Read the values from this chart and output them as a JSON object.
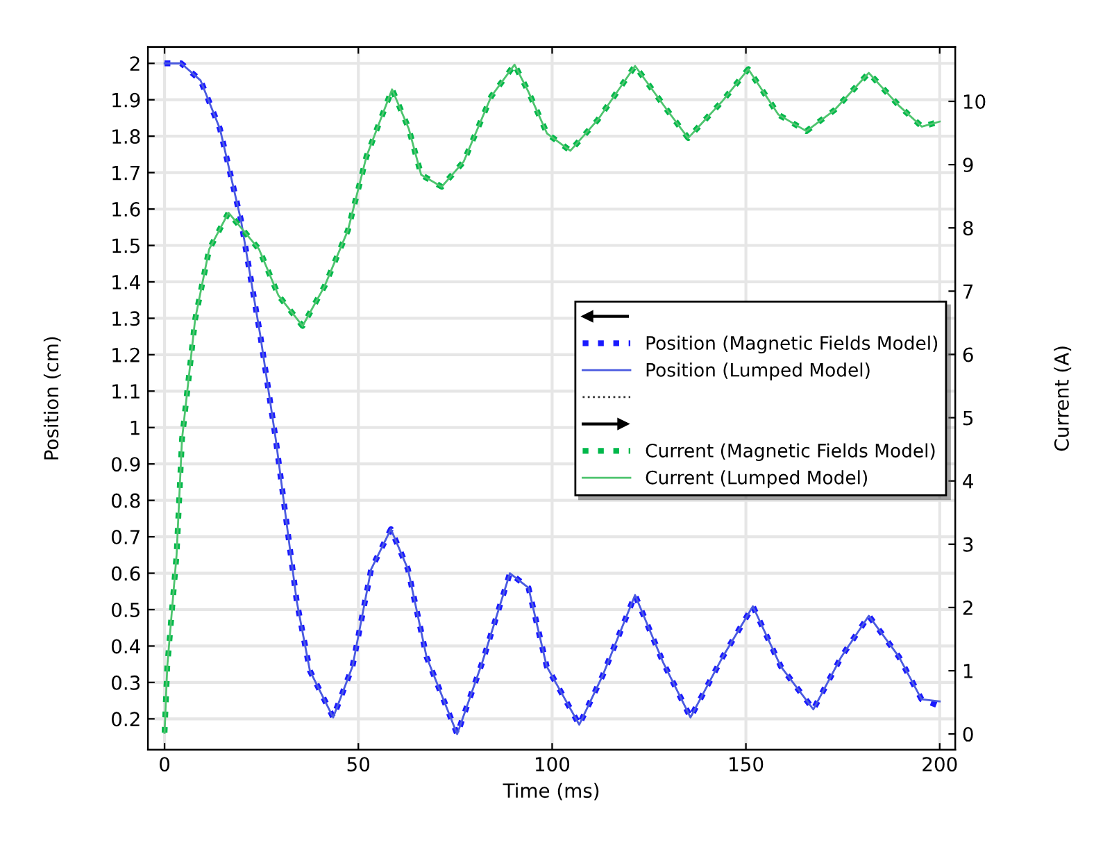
{
  "chart_data": {
    "type": "line",
    "xlabel": "Time (ms)",
    "ylabel": "Position (cm)",
    "y2label": "Current (A)",
    "xlim": [
      -4.3,
      204
    ],
    "xticks": [
      0,
      50,
      100,
      150,
      200
    ],
    "ylim": [
      0.115,
      2.045
    ],
    "yticks": [
      0.2,
      0.3,
      0.4,
      0.5,
      0.6,
      0.7,
      0.8,
      0.9,
      1,
      1.1,
      1.2,
      1.3,
      1.4,
      1.5,
      1.6,
      1.7,
      1.8,
      1.9,
      2
    ],
    "y2lim": [
      -0.25,
      10.86
    ],
    "y2ticks": [
      0,
      1,
      2,
      3,
      4,
      5,
      6,
      7,
      8,
      9,
      10
    ],
    "grid": true,
    "legend": "center right",
    "marker": "none",
    "series": [
      {
        "name": "Position (Magnetic Fields Model)",
        "color": "#1a1aff",
        "line_style": "dotted",
        "x": [
          0,
          4.3,
          9.3,
          14.3,
          19.7,
          24.7,
          28.7,
          34.1,
          37.5,
          43.5,
          48.5,
          53.3,
          58.4,
          62.8,
          67.6,
          75.5,
          82,
          89.1,
          93.9,
          98.6,
          107,
          113,
          121.4,
          128.6,
          135.7,
          144,
          151.8,
          159,
          167.4,
          174.6,
          181.7,
          189.5,
          195.3,
          200
        ],
        "values": [
          2.0,
          2.0,
          1.953,
          1.82,
          1.57,
          1.253,
          0.967,
          0.523,
          0.332,
          0.204,
          0.344,
          0.611,
          0.721,
          0.611,
          0.37,
          0.158,
          0.356,
          0.6,
          0.56,
          0.344,
          0.184,
          0.318,
          0.54,
          0.356,
          0.204,
          0.37,
          0.509,
          0.344,
          0.226,
          0.37,
          0.483,
          0.37,
          0.254,
          0.235
        ]
      },
      {
        "name": "Position (Lumped Model)",
        "color": "#4a5ae0",
        "line_style": "solid",
        "x": [
          0,
          4.3,
          9.3,
          14.3,
          19.7,
          24.7,
          28.7,
          34.1,
          37.5,
          43.5,
          48.5,
          53.3,
          58.4,
          62.8,
          67.6,
          75.5,
          82,
          89.1,
          93.9,
          98.6,
          107,
          113,
          121.4,
          128.6,
          135.7,
          144,
          151.8,
          159,
          167.4,
          174.6,
          181.7,
          189.5,
          195.3,
          200
        ],
        "values": [
          2.0,
          2.0,
          1.953,
          1.82,
          1.57,
          1.253,
          0.967,
          0.523,
          0.332,
          0.204,
          0.344,
          0.611,
          0.721,
          0.611,
          0.37,
          0.158,
          0.356,
          0.6,
          0.56,
          0.344,
          0.184,
          0.318,
          0.54,
          0.356,
          0.204,
          0.37,
          0.509,
          0.344,
          0.226,
          0.37,
          0.483,
          0.37,
          0.254,
          0.248
        ]
      },
      {
        "name": "Current (Magnetic Fields Model)",
        "color": "#00b84a",
        "line_style": "dotted",
        "axis": "y2",
        "x": [
          0,
          0.7,
          3.1,
          4.5,
          7.9,
          11.5,
          16.5,
          24.4,
          29.4,
          35.6,
          41.3,
          47.3,
          52.1,
          58.7,
          63,
          66.2,
          71.5,
          77.2,
          84.3,
          90.3,
          93.9,
          98.7,
          104.7,
          111.8,
          121.4,
          129.7,
          135.1,
          144,
          150.6,
          158.4,
          165.6,
          172.8,
          181.7,
          189.5,
          195.4,
          200
        ],
        "values": [
          0.02,
          1.07,
          2.83,
          4.66,
          6.56,
          7.66,
          8.24,
          7.66,
          6.93,
          6.45,
          7.08,
          7.96,
          9.13,
          10.19,
          9.57,
          8.84,
          8.65,
          9.05,
          10.08,
          10.58,
          10.15,
          9.49,
          9.22,
          9.71,
          10.56,
          9.86,
          9.42,
          10.01,
          10.51,
          9.79,
          9.53,
          9.86,
          10.45,
          9.93,
          9.6,
          9.68
        ]
      },
      {
        "name": "Current (Lumped Model)",
        "color": "#4ec46e",
        "line_style": "solid",
        "axis": "y2",
        "x": [
          0,
          0.7,
          3.1,
          4.5,
          7.9,
          11.5,
          16.5,
          24.4,
          29.4,
          35.6,
          41.3,
          47.3,
          52.1,
          58.7,
          63,
          66.2,
          71.5,
          77.2,
          84.3,
          90.3,
          93.9,
          98.7,
          104.7,
          111.8,
          121.4,
          129.7,
          135.1,
          144,
          150.6,
          158.4,
          165.6,
          172.8,
          181.7,
          189.5,
          195.4,
          200
        ],
        "values": [
          0.02,
          1.07,
          2.83,
          4.66,
          6.56,
          7.66,
          8.24,
          7.66,
          6.93,
          6.45,
          7.08,
          7.96,
          9.13,
          10.19,
          9.57,
          8.84,
          8.65,
          9.05,
          10.08,
          10.58,
          10.15,
          9.49,
          9.22,
          9.71,
          10.56,
          9.86,
          9.42,
          10.01,
          10.51,
          9.79,
          9.53,
          9.86,
          10.45,
          9.93,
          9.6,
          9.68
        ]
      }
    ]
  }
}
